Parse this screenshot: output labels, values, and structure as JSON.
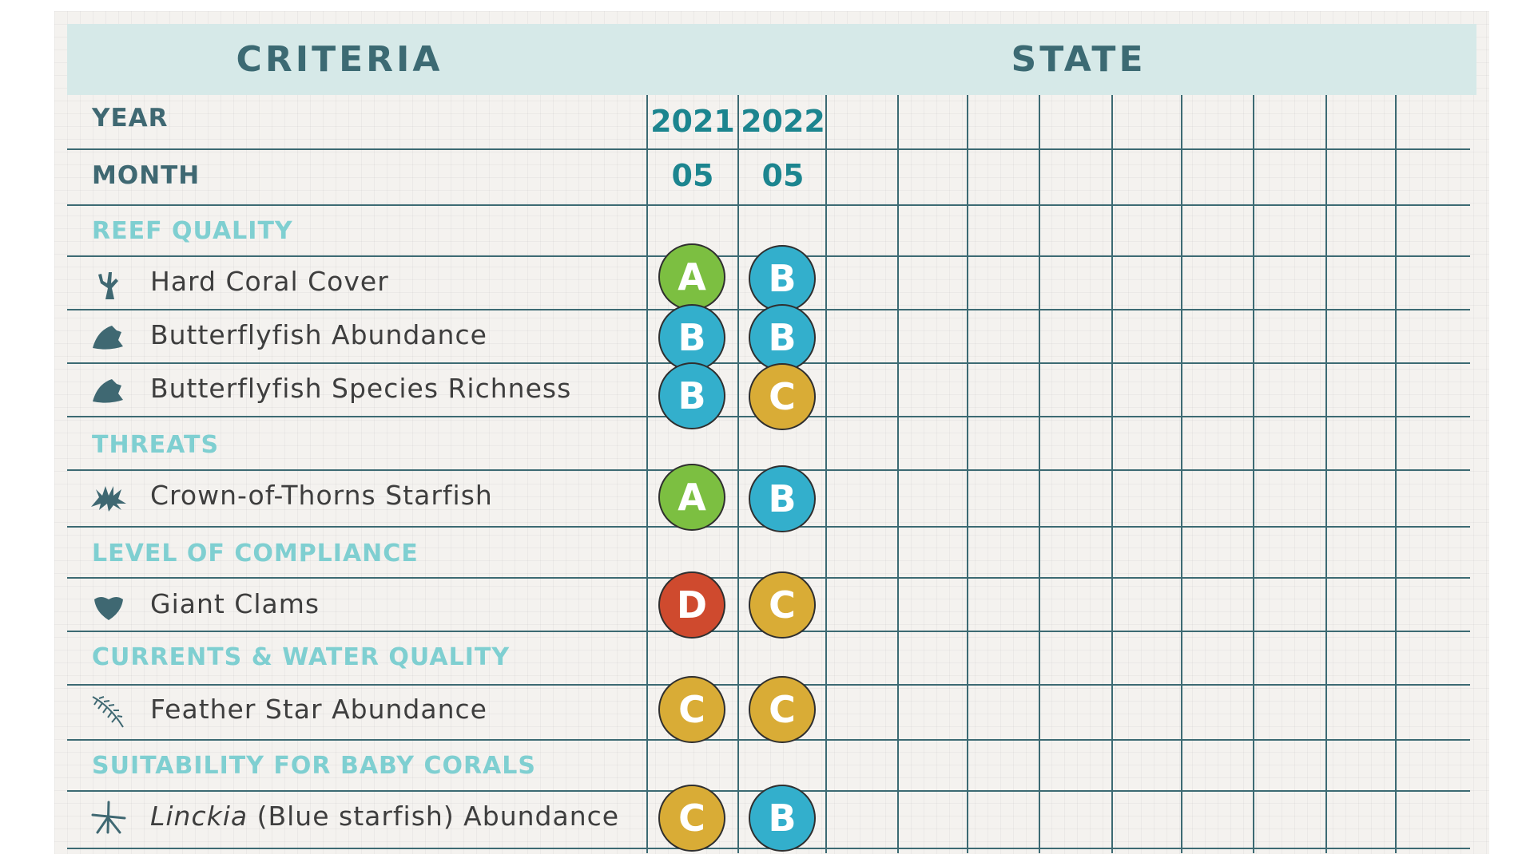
{
  "header": {
    "criteria_label": "CRITERIA",
    "state_label": "STATE"
  },
  "labels": {
    "year": "YEAR",
    "month": "MONTH"
  },
  "periods": [
    {
      "year": "2021",
      "month": "05"
    },
    {
      "year": "2022",
      "month": "05"
    }
  ],
  "sections": [
    {
      "title": "REEF QUALITY"
    },
    {
      "title": "THREATS"
    },
    {
      "title": "LEVEL OF COMPLIANCE"
    },
    {
      "title": "CURRENTS & WATER QUALITY"
    },
    {
      "title": "SUITABILITY FOR BABY CORALS"
    }
  ],
  "criteria": [
    {
      "label": "Hard Coral Cover",
      "icon": "coral-icon",
      "grades": [
        "A",
        "B"
      ]
    },
    {
      "label": "Butterflyfish Abundance",
      "icon": "butterflyfish-icon",
      "grades": [
        "B",
        "B"
      ]
    },
    {
      "label": "Butterflyfish Species Richness",
      "icon": "butterflyfish-icon",
      "grades": [
        "B",
        "C"
      ]
    },
    {
      "label": "Crown-of-Thorns Starfish",
      "icon": "crown-of-thorns-icon",
      "grades": [
        "A",
        "B"
      ]
    },
    {
      "label": "Giant Clams",
      "icon": "clam-icon",
      "grades": [
        "D",
        "C"
      ]
    },
    {
      "label": "Feather Star Abundance",
      "icon": "feather-star-icon",
      "grades": [
        "C",
        "C"
      ]
    },
    {
      "label_italic": "Linckia",
      "label_rest": " (Blue starfish) Abundance",
      "icon": "starfish-icon",
      "grades": [
        "C",
        "B"
      ]
    }
  ],
  "grade_colors": {
    "A": "#7cbf41",
    "B": "#33afcc",
    "C": "#d9ac36",
    "D": "#cf4a2e"
  }
}
